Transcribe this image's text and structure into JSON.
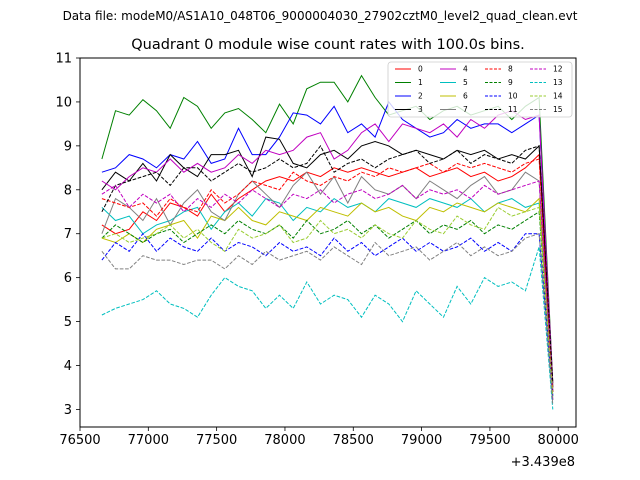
{
  "chart_data": {
    "type": "line",
    "suptitle": "Data file: modeM0/AS1A10_048T06_9000004030_27902cztM0_level2_quad_clean.evt",
    "title": "Quadrant 0 module wise count rates with 100.0s bins.",
    "xlabel": "",
    "ylabel": "",
    "x_offset_label": "+3.439e8",
    "xlim": [
      76500,
      80130
    ],
    "ylim": [
      2.6,
      11.0
    ],
    "xticks": [
      76500,
      77000,
      77500,
      78000,
      78500,
      79000,
      79500,
      80000
    ],
    "yticks": [
      3,
      4,
      5,
      6,
      7,
      8,
      9,
      10,
      11
    ],
    "legend_position": "upper-right",
    "x": [
      76660,
      76760,
      76860,
      76960,
      77060,
      77160,
      77260,
      77360,
      77460,
      77560,
      77660,
      77760,
      77860,
      77960,
      78060,
      78160,
      78260,
      78360,
      78460,
      78560,
      78660,
      78760,
      78860,
      78960,
      79060,
      79160,
      79260,
      79360,
      79460,
      79560,
      79660,
      79760,
      79860,
      79960
    ],
    "series": [
      {
        "name": "0",
        "color": "#ff0000",
        "dash": "solid",
        "values": [
          7.2,
          7.0,
          7.1,
          7.5,
          7.3,
          7.7,
          7.6,
          7.4,
          7.9,
          7.5,
          7.8,
          8.0,
          8.2,
          8.3,
          8.2,
          8.4,
          8.3,
          8.5,
          8.4,
          8.5,
          8.4,
          8.3,
          8.4,
          8.5,
          8.3,
          8.4,
          8.5,
          8.3,
          8.4,
          8.2,
          8.3,
          8.5,
          8.8,
          3.5
        ]
      },
      {
        "name": "1",
        "color": "#008000",
        "dash": "solid",
        "values": [
          8.7,
          9.8,
          9.7,
          10.05,
          9.8,
          9.4,
          10.1,
          9.9,
          9.4,
          9.75,
          9.85,
          9.6,
          9.3,
          9.95,
          9.5,
          10.3,
          10.45,
          10.45,
          10.0,
          10.6,
          10.1,
          9.7,
          9.8,
          9.9,
          9.6,
          9.8,
          9.9,
          9.7,
          9.8,
          9.9,
          9.6,
          9.9,
          10.1,
          3.6
        ]
      },
      {
        "name": "2",
        "color": "#0000ff",
        "dash": "solid",
        "values": [
          8.4,
          8.5,
          8.8,
          8.7,
          8.5,
          8.8,
          8.7,
          9.1,
          8.6,
          8.7,
          9.4,
          8.8,
          8.8,
          9.2,
          9.75,
          9.7,
          9.5,
          9.9,
          9.3,
          9.5,
          9.2,
          10.0,
          9.6,
          9.4,
          9.2,
          9.3,
          9.6,
          9.4,
          9.5,
          9.5,
          9.3,
          9.5,
          9.7,
          3.4
        ]
      },
      {
        "name": "3",
        "color": "#000000",
        "dash": "solid",
        "values": [
          8.0,
          8.4,
          8.2,
          8.6,
          8.2,
          8.8,
          8.5,
          8.3,
          8.8,
          8.8,
          8.9,
          8.3,
          9.2,
          9.15,
          8.6,
          8.5,
          8.8,
          8.9,
          8.7,
          9.0,
          9.1,
          9.0,
          8.8,
          8.9,
          8.8,
          8.7,
          8.9,
          8.8,
          8.9,
          8.7,
          8.8,
          8.7,
          9.0,
          3.5
        ]
      },
      {
        "name": "4",
        "color": "#c000c0",
        "dash": "solid",
        "values": [
          8.2,
          8.0,
          8.3,
          8.5,
          8.4,
          8.7,
          8.4,
          8.6,
          8.4,
          8.5,
          8.8,
          8.6,
          8.9,
          8.8,
          8.9,
          9.2,
          9.3,
          8.7,
          8.9,
          9.3,
          9.5,
          9.1,
          9.5,
          9.4,
          9.3,
          9.5,
          9.2,
          9.6,
          9.4,
          9.7,
          9.8,
          9.6,
          9.7,
          3.6
        ]
      },
      {
        "name": "5",
        "color": "#00bfbf",
        "dash": "solid",
        "values": [
          7.6,
          7.3,
          7.4,
          7.0,
          7.2,
          7.3,
          7.5,
          7.6,
          7.1,
          7.5,
          7.7,
          7.4,
          7.8,
          7.7,
          7.3,
          7.6,
          7.5,
          7.8,
          7.6,
          7.7,
          7.5,
          7.8,
          7.7,
          7.6,
          7.8,
          7.7,
          7.6,
          7.8,
          7.5,
          7.7,
          7.8,
          7.6,
          7.7,
          3.3
        ]
      },
      {
        "name": "6",
        "color": "#bfbf00",
        "dash": "solid",
        "values": [
          6.9,
          6.8,
          7.0,
          6.8,
          7.1,
          7.2,
          7.3,
          6.9,
          7.4,
          7.3,
          7.6,
          7.3,
          7.2,
          7.5,
          7.4,
          7.3,
          7.6,
          7.5,
          7.4,
          7.7,
          7.5,
          7.6,
          7.4,
          7.3,
          7.6,
          7.5,
          7.7,
          7.6,
          7.5,
          7.7,
          7.6,
          7.5,
          7.8,
          3.4
        ]
      },
      {
        "name": "7",
        "color": "#808080",
        "dash": "solid",
        "values": [
          7.0,
          7.8,
          7.6,
          7.3,
          7.8,
          7.2,
          7.7,
          8.0,
          7.5,
          7.3,
          7.9,
          8.2,
          7.9,
          7.6,
          8.1,
          8.4,
          7.9,
          8.3,
          7.7,
          8.3,
          8.0,
          7.9,
          8.1,
          7.8,
          8.2,
          8.0,
          7.8,
          8.1,
          8.3,
          7.9,
          8.0,
          8.4,
          8.2,
          3.5
        ]
      },
      {
        "name": "8",
        "color": "#ff0000",
        "dash": "dashed",
        "values": [
          7.8,
          7.7,
          7.6,
          7.7,
          7.4,
          7.8,
          7.6,
          7.5,
          8.0,
          7.7,
          7.9,
          8.2,
          8.1,
          8.0,
          8.4,
          8.2,
          8.1,
          8.3,
          8.2,
          8.4,
          8.3,
          8.5,
          8.4,
          8.5,
          8.6,
          8.4,
          8.6,
          8.5,
          8.6,
          8.5,
          8.4,
          8.6,
          8.7,
          3.4
        ]
      },
      {
        "name": "9",
        "color": "#008000",
        "dash": "dashed",
        "values": [
          6.9,
          7.2,
          7.0,
          6.8,
          7.0,
          7.1,
          6.8,
          7.0,
          7.2,
          7.0,
          7.3,
          7.1,
          7.0,
          7.2,
          6.9,
          7.3,
          7.0,
          7.1,
          7.3,
          7.0,
          7.2,
          6.9,
          7.1,
          7.3,
          7.0,
          7.2,
          7.1,
          7.3,
          7.0,
          7.2,
          7.1,
          7.3,
          7.5,
          3.2
        ]
      },
      {
        "name": "10",
        "color": "#0000ff",
        "dash": "dashed",
        "values": [
          6.4,
          6.8,
          6.6,
          7.0,
          6.6,
          6.9,
          6.7,
          6.6,
          6.9,
          6.6,
          6.8,
          6.7,
          6.5,
          6.8,
          6.6,
          6.7,
          6.5,
          6.9,
          6.6,
          6.8,
          6.5,
          6.7,
          6.9,
          6.6,
          6.8,
          6.6,
          6.7,
          6.9,
          6.6,
          6.8,
          6.6,
          7.0,
          7.0,
          3.3
        ]
      },
      {
        "name": "11",
        "color": "#000000",
        "dash": "dashed",
        "values": [
          7.5,
          8.1,
          8.2,
          8.3,
          8.4,
          8.1,
          8.5,
          8.5,
          8.2,
          8.4,
          8.6,
          8.4,
          8.5,
          8.7,
          8.5,
          8.6,
          9.0,
          8.4,
          8.6,
          8.7,
          8.5,
          8.7,
          8.8,
          8.9,
          8.6,
          8.7,
          8.9,
          8.6,
          8.8,
          8.7,
          8.6,
          8.9,
          9.0,
          3.6
        ]
      },
      {
        "name": "12",
        "color": "#c000c0",
        "dash": "dashed",
        "values": [
          7.9,
          8.1,
          7.6,
          7.9,
          7.7,
          7.9,
          7.5,
          7.8,
          7.6,
          7.9,
          7.7,
          8.0,
          7.8,
          7.6,
          7.9,
          7.8,
          8.0,
          7.7,
          7.9,
          8.0,
          7.8,
          7.9,
          8.1,
          7.8,
          8.0,
          7.9,
          8.0,
          7.8,
          8.1,
          7.9,
          8.0,
          8.1,
          8.2,
          3.2
        ]
      },
      {
        "name": "13",
        "color": "#00bfbf",
        "dash": "dashed",
        "values": [
          5.15,
          5.3,
          5.4,
          5.5,
          5.7,
          5.4,
          5.3,
          5.1,
          5.6,
          6.0,
          5.8,
          5.7,
          5.3,
          5.6,
          5.3,
          5.9,
          5.4,
          5.6,
          5.5,
          5.1,
          5.6,
          5.4,
          5.0,
          5.7,
          5.4,
          5.1,
          5.8,
          5.4,
          6.0,
          5.8,
          5.9,
          5.7,
          6.7,
          3.0
        ]
      },
      {
        "name": "14",
        "color": "#9acd32",
        "dash": "dashed",
        "values": [
          6.9,
          7.0,
          6.8,
          6.9,
          7.0,
          7.2,
          6.9,
          7.1,
          6.8,
          6.6,
          7.1,
          6.9,
          7.0,
          7.2,
          6.8,
          6.9,
          7.3,
          7.0,
          7.1,
          6.9,
          7.2,
          7.0,
          6.9,
          7.3,
          7.1,
          7.0,
          7.4,
          7.2,
          7.1,
          7.6,
          7.4,
          7.5,
          7.6,
          3.3
        ]
      },
      {
        "name": "15",
        "color": "#808080",
        "dash": "dashed",
        "values": [
          6.6,
          6.2,
          6.2,
          6.5,
          6.4,
          6.4,
          6.3,
          6.4,
          6.4,
          6.2,
          6.5,
          6.3,
          6.6,
          6.4,
          6.5,
          6.6,
          6.4,
          6.7,
          6.5,
          6.3,
          6.8,
          6.5,
          6.6,
          6.7,
          6.4,
          6.6,
          6.8,
          6.5,
          6.7,
          6.5,
          6.6,
          6.9,
          7.0,
          3.1
        ]
      }
    ]
  }
}
